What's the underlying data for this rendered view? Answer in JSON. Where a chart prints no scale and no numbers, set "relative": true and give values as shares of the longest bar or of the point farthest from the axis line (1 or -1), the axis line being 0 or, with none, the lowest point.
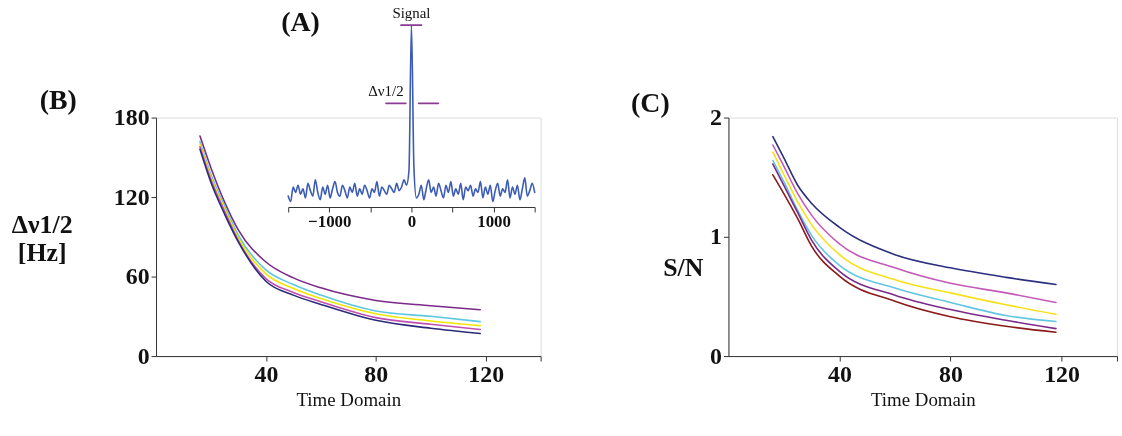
{
  "chart_data": [
    {
      "type": "line",
      "title": "(A)",
      "relative": true,
      "xlim": [
        -1500,
        1500
      ],
      "xticks": [
        {
          "value": -1500,
          "label": null
        },
        {
          "value": -1000,
          "label": "−1000"
        },
        {
          "value": -500,
          "label": null
        },
        0,
        {
          "value": 500,
          "label": null
        },
        1000,
        {
          "value": 1500,
          "label": null
        }
      ],
      "x": [
        -1500,
        -1470,
        -1440,
        -1410,
        -1380,
        -1350,
        -1320,
        -1290,
        -1260,
        -1230,
        -1200,
        -1170,
        -1140,
        -1110,
        -1080,
        -1050,
        -1020,
        -990,
        -960,
        -930,
        -900,
        -870,
        -840,
        -810,
        -780,
        -750,
        -720,
        -690,
        -660,
        -630,
        -600,
        -570,
        -540,
        -510,
        -480,
        -450,
        -420,
        -390,
        -360,
        -330,
        -300,
        -270,
        -240,
        -210,
        -180,
        -150,
        -120,
        -90,
        -60,
        -30,
        0,
        30,
        60,
        90,
        120,
        150,
        180,
        210,
        240,
        270,
        300,
        330,
        360,
        390,
        420,
        450,
        480,
        510,
        540,
        570,
        600,
        630,
        660,
        690,
        720,
        750,
        780,
        810,
        840,
        870,
        900,
        930,
        960,
        990,
        1020,
        1050,
        1080,
        1110,
        1140,
        1170,
        1200,
        1230,
        1260,
        1290,
        1320,
        1350,
        1380,
        1410,
        1440,
        1470,
        1500
      ],
      "series": [
        {
          "color": "#3b5bb5",
          "values": [
            0.06,
            0.03,
            0.11,
            0.08,
            0.12,
            0.07,
            0.1,
            0.05,
            0.13,
            0.09,
            0.06,
            0.15,
            0.08,
            0.04,
            0.11,
            0.07,
            0.12,
            0.05,
            0.1,
            0.14,
            0.08,
            0.06,
            0.12,
            0.09,
            0.05,
            0.11,
            0.08,
            0.13,
            0.06,
            0.1,
            0.07,
            0.12,
            0.09,
            0.05,
            0.1,
            0.08,
            0.14,
            0.06,
            0.11,
            0.09,
            0.07,
            0.12,
            0.1,
            0.08,
            0.13,
            0.09,
            0.11,
            0.15,
            0.12,
            0.2,
            1.0,
            0.22,
            0.05,
            0.07,
            0.12,
            0.04,
            0.1,
            0.15,
            0.08,
            0.11,
            0.06,
            0.13,
            0.09,
            0.05,
            0.12,
            0.08,
            0.14,
            0.06,
            0.1,
            0.07,
            0.13,
            0.04,
            0.11,
            0.09,
            0.12,
            0.06,
            0.1,
            0.08,
            0.14,
            0.05,
            0.11,
            0.07,
            0.12,
            0.03,
            0.09,
            0.13,
            0.06,
            0.1,
            0.08,
            0.15,
            0.05,
            0.11,
            0.07,
            0.12,
            0.04,
            0.1,
            0.16,
            0.06,
            0.09,
            0.13,
            0.08
          ]
        },
        {
          "color": "#8b3a96",
          "x": [
            -128,
            123
          ],
          "values": [
            1,
            1
          ]
        },
        {
          "color": "#8b3a96",
          "x": [
            -310,
            -67
          ],
          "values": [
            0.57,
            0.57
          ]
        },
        {
          "color": "#8b3a96",
          "x": [
            87,
            329
          ],
          "values": [
            0.57,
            0.57
          ]
        }
      ],
      "annotations": [
        {
          "text": "Signal",
          "x": 0,
          "y": 1
        },
        {
          "text": "Δν1/2",
          "x": -310,
          "y": 0.57
        }
      ]
    },
    {
      "type": "line",
      "title": "(B)",
      "xlabel": "Time Domain",
      "ylabel": "Δν1/2 [Hz]",
      "xlim": [
        0,
        140
      ],
      "ylim": [
        0,
        180
      ],
      "xticks": [
        40,
        80,
        120,
        {
          "value": 140,
          "label": null
        }
      ],
      "yticks": [
        0,
        60,
        120,
        180
      ],
      "x": [
        16,
        20,
        25,
        30,
        40,
        50,
        60,
        80,
        100,
        118
      ],
      "series": [
        {
          "color": "#7b2a8a",
          "values": [
            166,
            142,
            116,
            95,
            71,
            59,
            51.5,
            42,
            38,
            35
          ]
        },
        {
          "color": "#5bc8e0",
          "values": [
            162,
            137,
            113,
            91,
            65,
            54,
            46,
            34,
            30,
            26
          ]
        },
        {
          "color": "#f2e600",
          "values": [
            160,
            135,
            111,
            89,
            62,
            51,
            43.5,
            32,
            26.5,
            23
          ]
        },
        {
          "color": "#c050b0",
          "values": [
            158,
            133,
            109,
            87,
            58.5,
            48,
            41,
            29,
            24,
            20
          ]
        },
        {
          "color": "#2a2a7a",
          "values": [
            156,
            131,
            107,
            86,
            56.5,
            46,
            39,
            27,
            21,
            17
          ]
        }
      ]
    },
    {
      "type": "line",
      "title": "(C)",
      "xlabel": "Time Domain",
      "ylabel": "S/N",
      "xlim": [
        0,
        140
      ],
      "ylim": [
        0,
        2
      ],
      "xticks": [
        40,
        80,
        120,
        {
          "value": 140,
          "label": null
        }
      ],
      "yticks": [
        0,
        1,
        2
      ],
      "x": [
        16,
        20,
        25,
        30,
        40,
        60,
        80,
        100,
        118
      ],
      "series": [
        {
          "color": "#2b2f7e",
          "values": [
            1.84,
            1.66,
            1.43,
            1.28,
            1.08,
            0.85,
            0.74,
            0.66,
            0.6
          ]
        },
        {
          "color": "#c45ab8",
          "values": [
            1.77,
            1.59,
            1.36,
            1.18,
            0.94,
            0.74,
            0.61,
            0.53,
            0.45
          ]
        },
        {
          "color": "#f5e11a",
          "values": [
            1.71,
            1.52,
            1.29,
            1.1,
            0.85,
            0.64,
            0.53,
            0.43,
            0.35
          ]
        },
        {
          "color": "#62c6e0",
          "values": [
            1.64,
            1.46,
            1.22,
            1.01,
            0.76,
            0.57,
            0.45,
            0.34,
            0.29
          ]
        },
        {
          "color": "#7b2a8a",
          "values": [
            1.61,
            1.43,
            1.2,
            0.97,
            0.71,
            0.51,
            0.39,
            0.3,
            0.23
          ]
        },
        {
          "color": "#8b1a1a",
          "values": [
            1.52,
            1.36,
            1.15,
            0.92,
            0.67,
            0.46,
            0.33,
            0.25,
            0.2
          ]
        }
      ]
    }
  ]
}
